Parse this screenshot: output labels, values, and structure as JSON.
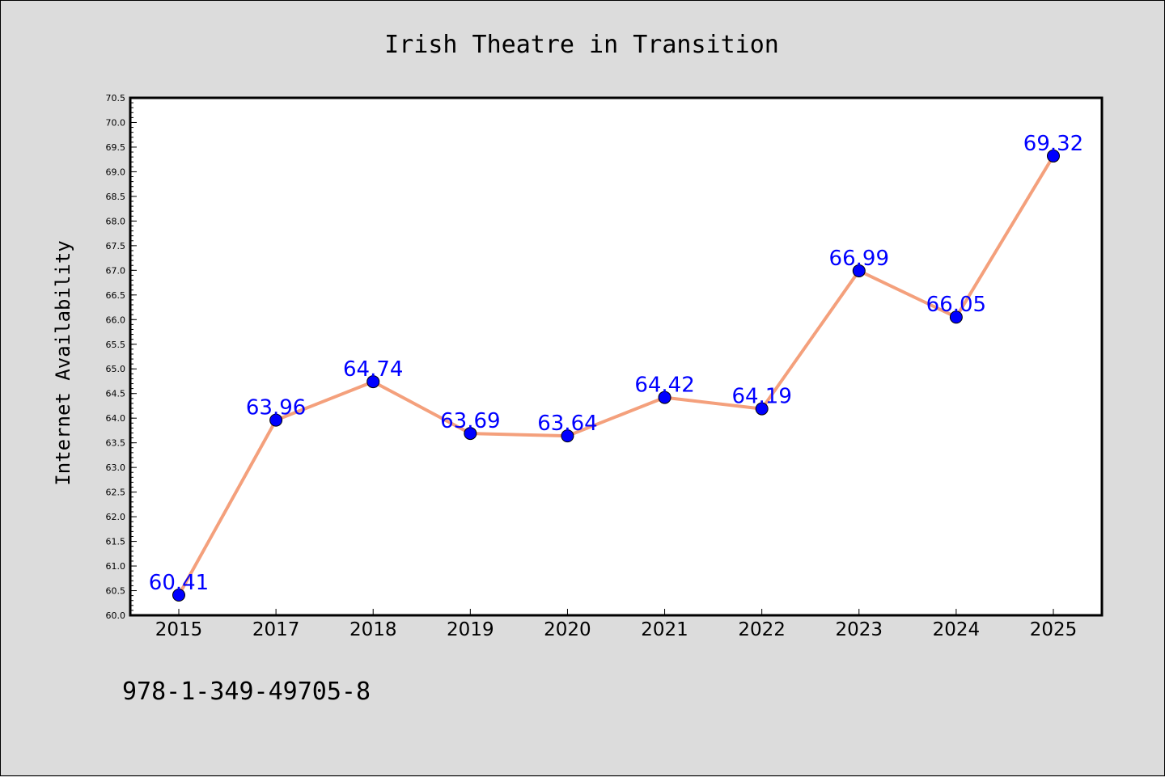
{
  "footer_text": "978-1-349-49705-8",
  "colors": {
    "background": "#dcdcdc",
    "plot_background": "#ffffff",
    "line": "#f4a07c",
    "marker": "#0000ff",
    "data_label": "#0000ff"
  },
  "chart_data": {
    "type": "line",
    "title": "Irish Theatre in Transition",
    "xlabel": "",
    "ylabel": "Internet Availability",
    "categories": [
      "2015",
      "2017",
      "2018",
      "2019",
      "2020",
      "2021",
      "2022",
      "2023",
      "2024",
      "2025"
    ],
    "series": [
      {
        "values": [
          60.41,
          63.96,
          64.74,
          63.69,
          63.64,
          64.42,
          64.19,
          66.99,
          66.05,
          69.32
        ],
        "labels": [
          "60.41",
          "63.96",
          "64.74",
          "63.69",
          "63.64",
          "64.42",
          "64.19",
          "66.99",
          "66.05",
          "69.32"
        ]
      }
    ],
    "ylim": [
      60.0,
      70.5
    ],
    "yticks": [
      "60.0",
      "60.5",
      "61.0",
      "61.5",
      "62.0",
      "62.5",
      "63.0",
      "63.5",
      "64.0",
      "64.5",
      "65.0",
      "65.5",
      "66.0",
      "66.5",
      "67.0",
      "67.5",
      "68.0",
      "68.5",
      "69.0",
      "69.5",
      "70.0",
      "70.5"
    ],
    "grid": false,
    "legend": "none",
    "markers": "circle"
  }
}
